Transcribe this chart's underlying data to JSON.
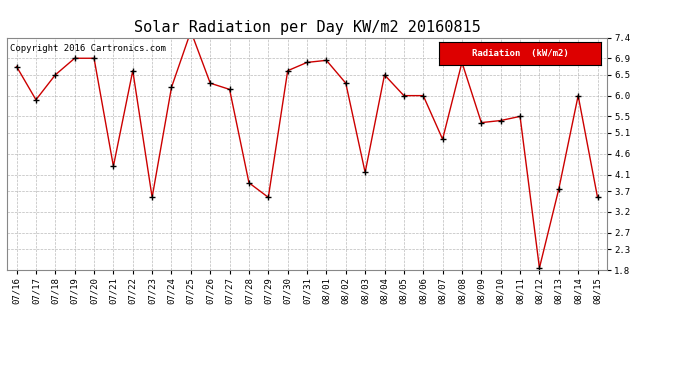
{
  "title": "Solar Radiation per Day KW/m2 20160815",
  "copyright_text": "Copyright 2016 Cartronics.com",
  "legend_label": "Radiation  (kW/m2)",
  "dates": [
    "07/16",
    "07/17",
    "07/18",
    "07/19",
    "07/20",
    "07/21",
    "07/22",
    "07/23",
    "07/24",
    "07/25",
    "07/26",
    "07/27",
    "07/28",
    "07/29",
    "07/30",
    "07/31",
    "08/01",
    "08/02",
    "08/03",
    "08/04",
    "08/05",
    "08/06",
    "08/07",
    "08/08",
    "08/09",
    "08/10",
    "08/11",
    "08/12",
    "08/13",
    "08/14",
    "08/15"
  ],
  "values": [
    6.7,
    5.9,
    6.5,
    6.9,
    6.9,
    4.3,
    6.6,
    3.55,
    6.2,
    7.55,
    6.3,
    6.15,
    3.9,
    3.55,
    6.6,
    6.8,
    6.85,
    6.3,
    4.15,
    6.5,
    6.0,
    6.0,
    4.95,
    6.8,
    5.35,
    5.4,
    5.5,
    1.85,
    3.75,
    6.0,
    3.55
  ],
  "line_color": "#cc0000",
  "marker_color": "#000000",
  "background_color": "#ffffff",
  "plot_bg_color": "#ffffff",
  "grid_color": "#aaaaaa",
  "legend_bg": "#dd0000",
  "legend_text_color": "#ffffff",
  "ylim": [
    1.8,
    7.4
  ],
  "yticks": [
    1.8,
    2.3,
    2.7,
    3.2,
    3.7,
    4.1,
    4.6,
    5.1,
    5.5,
    6.0,
    6.5,
    6.9,
    7.4
  ],
  "title_fontsize": 11,
  "tick_fontsize": 6.5,
  "copyright_fontsize": 6.5,
  "legend_fontsize": 6.5
}
